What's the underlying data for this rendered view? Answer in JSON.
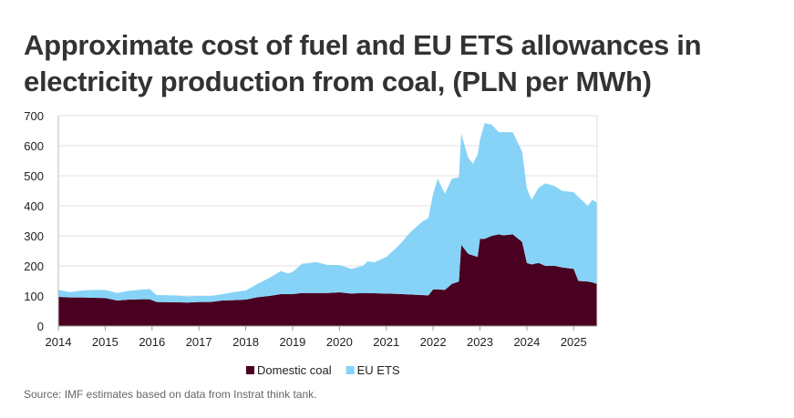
{
  "title": "Approximate cost of fuel and EU ETS allowances in electricity production from coal, (PLN per MWh)",
  "source": "Source: IMF estimates based on data from Instrat think tank.",
  "chart_data": {
    "type": "area",
    "stacked": true,
    "title": "Approximate cost of fuel and EU ETS allowances in electricity production from coal, (PLN per MWh)",
    "xlim": [
      2014,
      2025.5
    ],
    "ylim": [
      0,
      700
    ],
    "yticks": [
      0,
      100,
      200,
      300,
      400,
      500,
      600,
      700
    ],
    "xticks": [
      2014,
      2015,
      2016,
      2017,
      2018,
      2019,
      2020,
      2021,
      2022,
      2023,
      2024,
      2025
    ],
    "grid": "horizontal",
    "legend": "bottom",
    "x": [
      2014.0,
      2014.25,
      2014.5,
      2014.75,
      2015.0,
      2015.25,
      2015.5,
      2015.75,
      2015.95,
      2016.1,
      2016.5,
      2016.75,
      2017.0,
      2017.25,
      2017.5,
      2017.75,
      2018.0,
      2018.25,
      2018.5,
      2018.75,
      2018.9,
      2019.0,
      2019.2,
      2019.5,
      2019.75,
      2020.0,
      2020.25,
      2020.5,
      2020.6,
      2020.75,
      2021.0,
      2021.25,
      2021.5,
      2021.75,
      2021.9,
      2022.0,
      2022.1,
      2022.25,
      2022.4,
      2022.55,
      2022.6,
      2022.75,
      2022.85,
      2022.95,
      2023.0,
      2023.1,
      2023.25,
      2023.4,
      2023.5,
      2023.7,
      2023.9,
      2024.0,
      2024.1,
      2024.25,
      2024.4,
      2024.6,
      2024.75,
      2025.0,
      2025.1,
      2025.3,
      2025.4,
      2025.5
    ],
    "series": [
      {
        "name": "Domestic coal",
        "color": "#4a0020",
        "values": [
          97,
          95,
          95,
          94,
          93,
          85,
          88,
          89,
          89,
          80,
          79,
          78,
          80,
          80,
          85,
          86,
          88,
          96,
          100,
          106,
          106,
          106,
          110,
          110,
          110,
          112,
          108,
          110,
          110,
          109,
          108,
          107,
          105,
          103,
          102,
          122,
          122,
          120,
          140,
          148,
          270,
          240,
          235,
          230,
          290,
          290,
          300,
          305,
          302,
          305,
          280,
          210,
          205,
          210,
          200,
          200,
          195,
          190,
          150,
          148,
          145,
          140
        ]
      },
      {
        "name": "EU ETS",
        "color": "#87d3f8",
        "values": [
          23,
          18,
          23,
          26,
          27,
          25,
          29,
          32,
          34,
          23,
          23,
          20,
          20,
          20,
          21,
          27,
          30,
          44,
          60,
          77,
          69,
          74,
          97,
          103,
          93,
          91,
          82,
          90,
          105,
          103,
          122,
          158,
          205,
          242,
          258,
          318,
          368,
          320,
          350,
          347,
          370,
          320,
          305,
          340,
          330,
          385,
          370,
          340,
          343,
          340,
          300,
          250,
          215,
          250,
          275,
          265,
          255,
          255,
          280,
          252,
          275,
          270
        ]
      }
    ]
  }
}
